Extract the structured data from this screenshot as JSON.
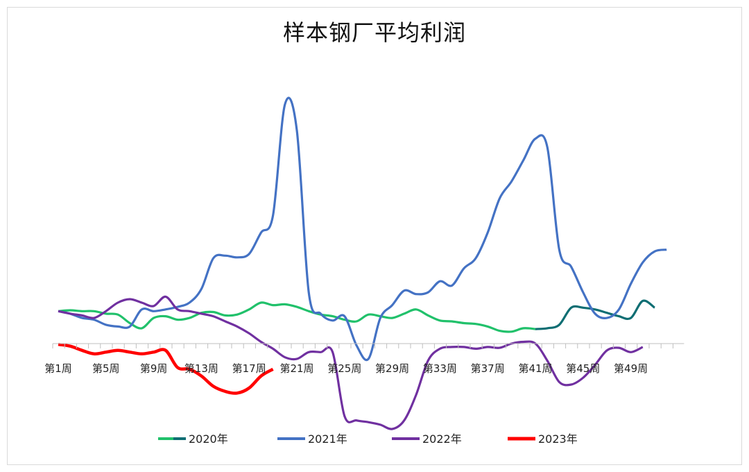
{
  "chart_data": {
    "type": "line",
    "title": "样本钢厂平均利润",
    "x_labels": [
      "第1周",
      "第5周",
      "第9周",
      "第13周",
      "第17周",
      "第21周",
      "第25周",
      "第29周",
      "第33周",
      "第37周",
      "第41周",
      "第45周",
      "第49周"
    ],
    "x_range": [
      1,
      53
    ],
    "grid": false,
    "legend_position": "bottom",
    "series": [
      {
        "name": "2020年",
        "color": "#21c16b",
        "color_late": "#0f6e73",
        "values": [
          38,
          39,
          38,
          38,
          35,
          34,
          24,
          18,
          30,
          32,
          28,
          30,
          36,
          37,
          33,
          34,
          40,
          48,
          45,
          46,
          43,
          38,
          34,
          32,
          28,
          26,
          34,
          32,
          30,
          35,
          40,
          33,
          27,
          26,
          24,
          23,
          20,
          15,
          14,
          18,
          17,
          18,
          22,
          42,
          42,
          40,
          36,
          32,
          30,
          50,
          42
        ]
      },
      {
        "name": "2021年",
        "color": "#4472c4",
        "values": [
          38,
          35,
          30,
          28,
          22,
          20,
          20,
          40,
          38,
          40,
          43,
          48,
          64,
          100,
          103,
          101,
          105,
          130,
          150,
          280,
          250,
          60,
          35,
          27,
          32,
          -2,
          -18,
          30,
          45,
          62,
          58,
          60,
          73,
          68,
          88,
          100,
          130,
          170,
          190,
          215,
          240,
          230,
          110,
          90,
          60,
          35,
          30,
          40,
          70,
          95,
          108,
          110
        ]
      },
      {
        "name": "2022年",
        "color": "#7030a0",
        "values": [
          38,
          35,
          33,
          30,
          38,
          48,
          52,
          48,
          44,
          55,
          40,
          38,
          35,
          32,
          26,
          20,
          12,
          2,
          -6,
          -16,
          -18,
          -10,
          -10,
          -10,
          -85,
          -90,
          -92,
          -95,
          -100,
          -90,
          -60,
          -20,
          -6,
          -4,
          -4,
          -6,
          -4,
          -5,
          0,
          2,
          0,
          -20,
          -45,
          -48,
          -40,
          -25,
          -8,
          -5,
          -10,
          -4
        ]
      },
      {
        "name": "2023年",
        "color": "#ff0000",
        "values": [
          -1,
          -3,
          -8,
          -12,
          -10,
          -8,
          -10,
          -12,
          -10,
          -8,
          -28,
          -30,
          -38,
          -50,
          -56,
          -58,
          -52,
          -38,
          -30
        ]
      }
    ]
  }
}
